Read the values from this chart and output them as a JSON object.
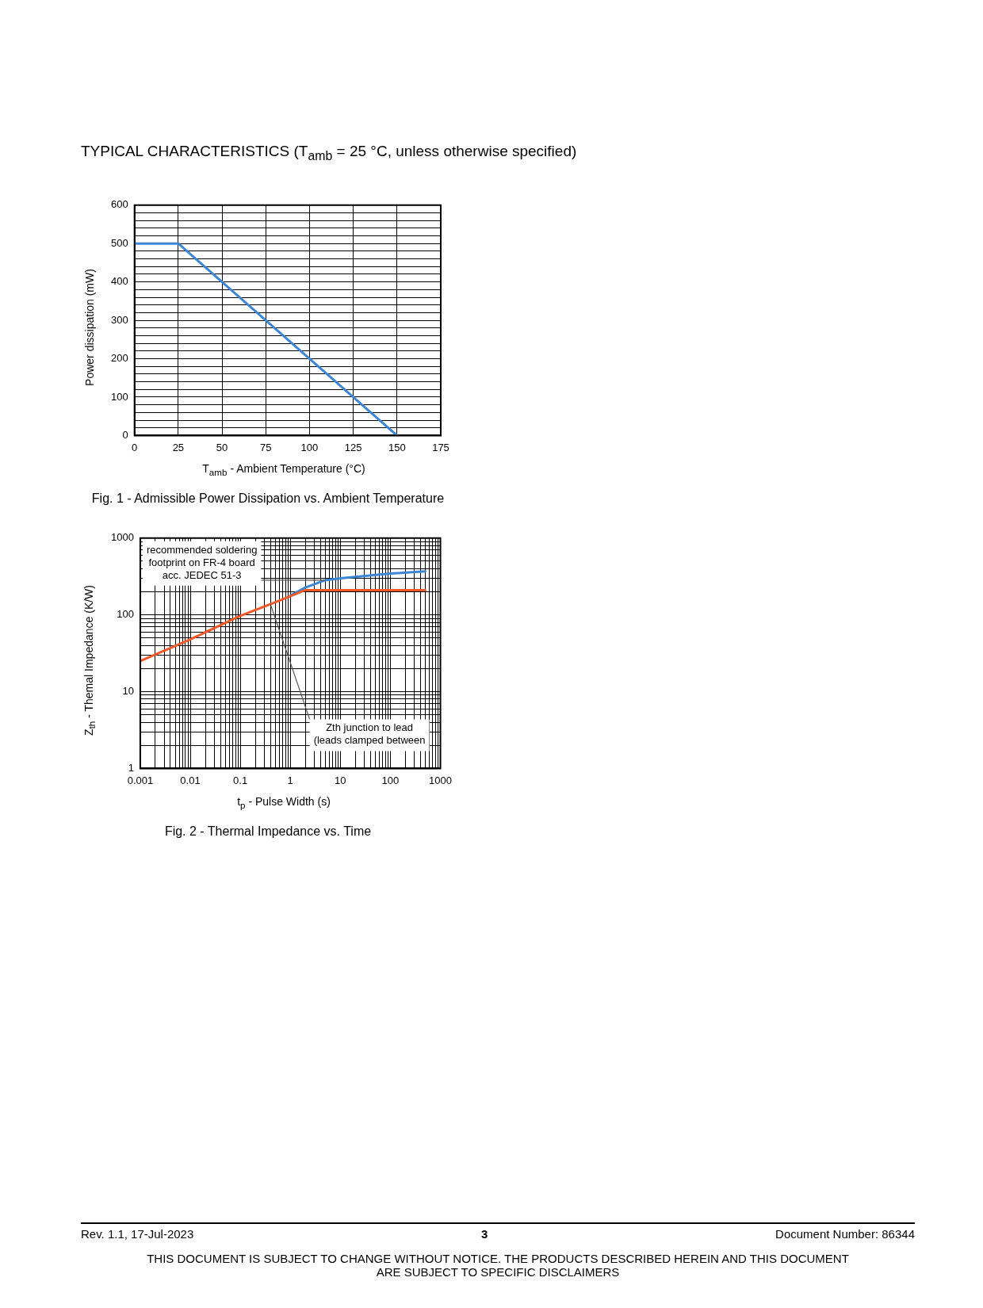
{
  "chart_data": [
    {
      "type": "line",
      "title": "Fig. 1 - Admissible Power Dissipation vs. Ambient Temperature",
      "xlabel": "T$_{amb}$ - Ambient Temperature (°C)",
      "ylabel": "Power dissipation (mW)",
      "annotations": [
        "TYPICAL CHARACTERISTICS (T$_{amb}$ = 25 °C, unless otherwise specified)"
      ],
      "x": [
        0,
        25,
        150
      ],
      "series": [
        {
          "color": "#3c86d4",
          "values": [
            500,
            500,
            0
          ]
        }
      ],
      "xlim": [
        0,
        175
      ],
      "xticks": [
        0,
        25,
        50,
        75,
        100,
        125,
        150,
        175
      ],
      "ylim": [
        0,
        600
      ],
      "yticks": [
        0,
        {
          "value": 20,
          "label": null
        },
        {
          "value": 40,
          "label": null
        },
        {
          "value": 60,
          "label": null
        },
        {
          "value": 80,
          "label": null
        },
        100,
        {
          "value": 120,
          "label": null
        },
        {
          "value": 140,
          "label": null
        },
        {
          "value": 160,
          "label": null
        },
        {
          "value": 180,
          "label": null
        },
        200,
        {
          "value": 220,
          "label": null
        },
        {
          "value": 240,
          "label": null
        },
        {
          "value": 260,
          "label": null
        },
        {
          "value": 280,
          "label": null
        },
        300,
        {
          "value": 320,
          "label": null
        },
        {
          "value": 340,
          "label": null
        },
        {
          "value": 360,
          "label": null
        },
        {
          "value": 380,
          "label": null
        },
        400,
        {
          "value": 420,
          "label": null
        },
        {
          "value": 440,
          "label": null
        },
        {
          "value": 460,
          "label": null
        },
        {
          "value": 480,
          "label": null
        },
        500,
        {
          "value": 520,
          "label": null
        },
        {
          "value": 540,
          "label": null
        },
        {
          "value": 560,
          "label": null
        },
        {
          "value": 580,
          "label": null
        },
        600
      ],
      "grid": true,
      "legend": false,
      "marker": "none",
      "line_style": "solid"
    },
    {
      "type": "line",
      "title": "Fig. 2 - Thermal Impedance vs. Time",
      "xlabel": "t$_{p}$ - Pulse Width (s)",
      "ylabel": "Z$_{th}$ - Themal Impedance (K/W)",
      "annotations": [
        {
          "text": "recommended soldering\nfootprint on FR-4 board\nacc. JEDEC 51-3",
          "x": 5,
          "y": 283
        },
        {
          "text": "Zth junction to lead\n(leads clamped between",
          "x": 0.4,
          "y": 138
        },
        "Rev. 1.1, 17-Jul-2023",
        "3",
        "Document Number: 86344",
        "THIS DOCUMENT IS SUBJECT TO CHANGE WITHOUT NOTICE. THE PRODUCTS DESCRIBED HEREIN AND THIS DOCUMENT\nARE SUBJECT TO SPECIFIC DISCLAIMERS"
      ],
      "series": [
        {
          "color": "#f05a28",
          "x": [
            0.001,
            0.01,
            0.1,
            0.4,
            1,
            2,
            500
          ],
          "values": [
            25,
            48,
            97,
            138,
            175,
            210,
            210
          ]
        },
        {
          "color": "#3c86d4",
          "x": [
            1,
            2,
            5,
            10,
            100,
            500
          ],
          "values": [
            178,
            227,
            283,
            300,
            345,
            369
          ]
        }
      ],
      "log": "xy",
      "xlim": [
        0.001,
        1000
      ],
      "xticks": [
        0.001,
        {
          "value": 0.002,
          "label": null
        },
        {
          "value": 0.003,
          "label": null
        },
        {
          "value": 0.004,
          "label": null
        },
        {
          "value": 0.005,
          "label": null
        },
        {
          "value": 0.006,
          "label": null
        },
        {
          "value": 0.007,
          "label": null
        },
        {
          "value": 0.008,
          "label": null
        },
        {
          "value": 0.009,
          "label": null
        },
        0.01,
        {
          "value": 0.02,
          "label": null
        },
        {
          "value": 0.03,
          "label": null
        },
        {
          "value": 0.04,
          "label": null
        },
        {
          "value": 0.05,
          "label": null
        },
        {
          "value": 0.06,
          "label": null
        },
        {
          "value": 0.07,
          "label": null
        },
        {
          "value": 0.08,
          "label": null
        },
        {
          "value": 0.09,
          "label": null
        },
        0.1,
        {
          "value": 0.2,
          "label": null
        },
        {
          "value": 0.3,
          "label": null
        },
        {
          "value": 0.4,
          "label": null
        },
        {
          "value": 0.5,
          "label": null
        },
        {
          "value": 0.6,
          "label": null
        },
        {
          "value": 0.7,
          "label": null
        },
        {
          "value": 0.8,
          "label": null
        },
        {
          "value": 0.9,
          "label": null
        },
        1,
        {
          "value": 2,
          "label": null
        },
        {
          "value": 3,
          "label": null
        },
        {
          "value": 4,
          "label": null
        },
        {
          "value": 5,
          "label": null
        },
        {
          "value": 6,
          "label": null
        },
        {
          "value": 7,
          "label": null
        },
        {
          "value": 8,
          "label": null
        },
        {
          "value": 9,
          "label": null
        },
        10,
        {
          "value": 20,
          "label": null
        },
        {
          "value": 30,
          "label": null
        },
        {
          "value": 40,
          "label": null
        },
        {
          "value": 50,
          "label": null
        },
        {
          "value": 60,
          "label": null
        },
        {
          "value": 70,
          "label": null
        },
        {
          "value": 80,
          "label": null
        },
        {
          "value": 90,
          "label": null
        },
        100,
        {
          "value": 200,
          "label": null
        },
        {
          "value": 300,
          "label": null
        },
        {
          "value": 400,
          "label": null
        },
        {
          "value": 500,
          "label": null
        },
        {
          "value": 600,
          "label": null
        },
        {
          "value": 700,
          "label": null
        },
        {
          "value": 800,
          "label": null
        },
        {
          "value": 900,
          "label": null
        },
        1000
      ],
      "ylim": [
        1,
        1000
      ],
      "yticks": [
        1,
        {
          "value": 2,
          "label": null
        },
        {
          "value": 3,
          "label": null
        },
        {
          "value": 4,
          "label": null
        },
        {
          "value": 5,
          "label": null
        },
        {
          "value": 6,
          "label": null
        },
        {
          "value": 7,
          "label": null
        },
        {
          "value": 8,
          "label": null
        },
        {
          "value": 9,
          "label": null
        },
        10,
        {
          "value": 20,
          "label": null
        },
        {
          "value": 30,
          "label": null
        },
        {
          "value": 40,
          "label": null
        },
        {
          "value": 50,
          "label": null
        },
        {
          "value": 60,
          "label": null
        },
        {
          "value": 70,
          "label": null
        },
        {
          "value": 80,
          "label": null
        },
        {
          "value": 90,
          "label": null
        },
        100,
        {
          "value": 200,
          "label": null
        },
        {
          "value": 300,
          "label": null
        },
        {
          "value": 400,
          "label": null
        },
        {
          "value": 500,
          "label": null
        },
        {
          "value": 600,
          "label": null
        },
        {
          "value": 700,
          "label": null
        },
        {
          "value": 800,
          "label": null
        },
        {
          "value": 900,
          "label": null
        },
        1000
      ],
      "grid": true,
      "legend": false,
      "marker": "none",
      "line_style": "solid"
    }
  ]
}
